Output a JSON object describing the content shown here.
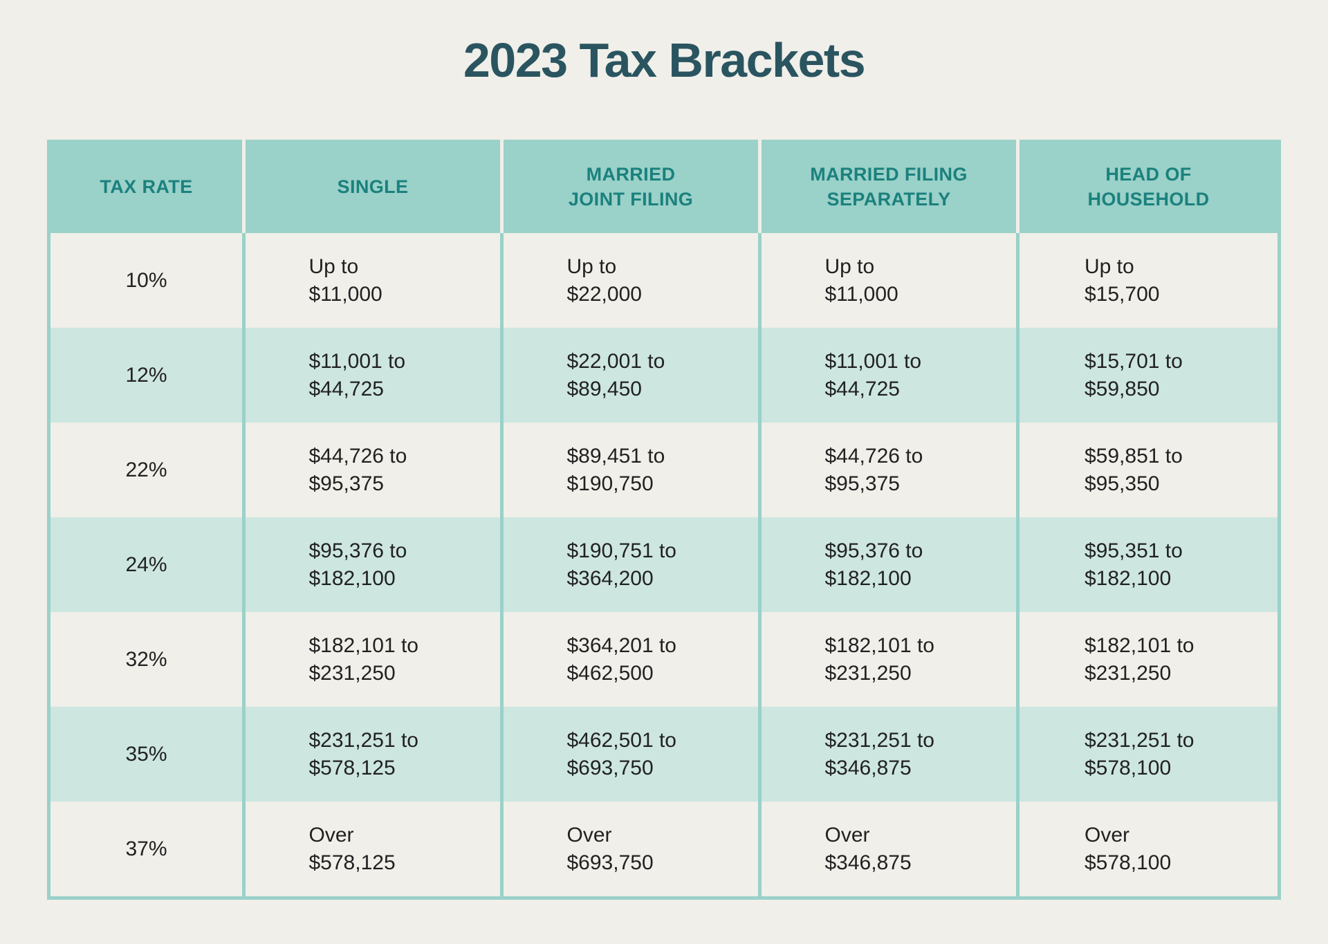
{
  "title": "2023 Tax Brackets",
  "colors": {
    "page_background": "#f0efe9",
    "header_teal": "#9ad1c9",
    "header_text_teal": "#1b817d",
    "title_dark_teal": "#2a5560",
    "row_alt_teal": "#cde6e0",
    "body_text": "#212121",
    "border_teal": "#9ad1c9"
  },
  "table": {
    "headers": {
      "tax_rate": "TAX RATE",
      "single": "SINGLE",
      "married_joint": "MARRIED\nJOINT FILING",
      "married_separate": "MARRIED FILING\nSEPARATELY",
      "head_household": "HEAD OF\nHOUSEHOLD"
    },
    "rows": [
      {
        "rate": "10%",
        "single": "Up to\n$11,000",
        "married_joint": "Up to\n$22,000",
        "married_separate": "Up to\n$11,000",
        "head_household": "Up to\n$15,700"
      },
      {
        "rate": "12%",
        "single": "$11,001 to\n$44,725",
        "married_joint": "$22,001 to\n$89,450",
        "married_separate": "$11,001 to\n$44,725",
        "head_household": "$15,701 to\n$59,850"
      },
      {
        "rate": "22%",
        "single": "$44,726 to\n$95,375",
        "married_joint": "$89,451 to\n$190,750",
        "married_separate": "$44,726 to\n$95,375",
        "head_household": "$59,851 to\n$95,350"
      },
      {
        "rate": "24%",
        "single": "$95,376 to\n$182,100",
        "married_joint": "$190,751 to\n$364,200",
        "married_separate": "$95,376 to\n$182,100",
        "head_household": "$95,351 to\n$182,100"
      },
      {
        "rate": "32%",
        "single": "$182,101 to\n$231,250",
        "married_joint": "$364,201 to\n$462,500",
        "married_separate": "$182,101 to\n$231,250",
        "head_household": "$182,101 to\n$231,250"
      },
      {
        "rate": "35%",
        "single": "$231,251 to\n$578,125",
        "married_joint": "$462,501 to\n$693,750",
        "married_separate": "$231,251 to\n$346,875",
        "head_household": "$231,251 to\n$578,100"
      },
      {
        "rate": "37%",
        "single": "Over\n$578,125",
        "married_joint": "Over\n$693,750",
        "married_separate": "Over\n$346,875",
        "head_household": "Over\n$578,100"
      }
    ]
  },
  "chart_data": {
    "type": "table",
    "title": "2023 Tax Brackets",
    "columns": [
      "TAX RATE",
      "SINGLE",
      "MARRIED JOINT FILING",
      "MARRIED FILING SEPARATELY",
      "HEAD OF HOUSEHOLD"
    ],
    "rows": [
      [
        "10%",
        "Up to $11,000",
        "Up to $22,000",
        "Up to $11,000",
        "Up to $15,700"
      ],
      [
        "12%",
        "$11,001 to $44,725",
        "$22,001 to $89,450",
        "$11,001 to $44,725",
        "$15,701 to $59,850"
      ],
      [
        "22%",
        "$44,726 to $95,375",
        "$89,451 to $190,750",
        "$44,726 to $95,375",
        "$59,851 to $95,350"
      ],
      [
        "24%",
        "$95,376 to $182,100",
        "$190,751 to $364,200",
        "$95,376 to $182,100",
        "$95,351 to $182,100"
      ],
      [
        "32%",
        "$182,101 to $231,250",
        "$364,201 to $462,500",
        "$182,101 to $231,250",
        "$182,101 to $231,250"
      ],
      [
        "35%",
        "$231,251 to $578,125",
        "$462,501 to $693,750",
        "$231,251 to $346,875",
        "$231,251 to $578,100"
      ],
      [
        "37%",
        "Over $578,125",
        "Over $693,750",
        "Over $346,875",
        "Over $578,100"
      ]
    ]
  }
}
